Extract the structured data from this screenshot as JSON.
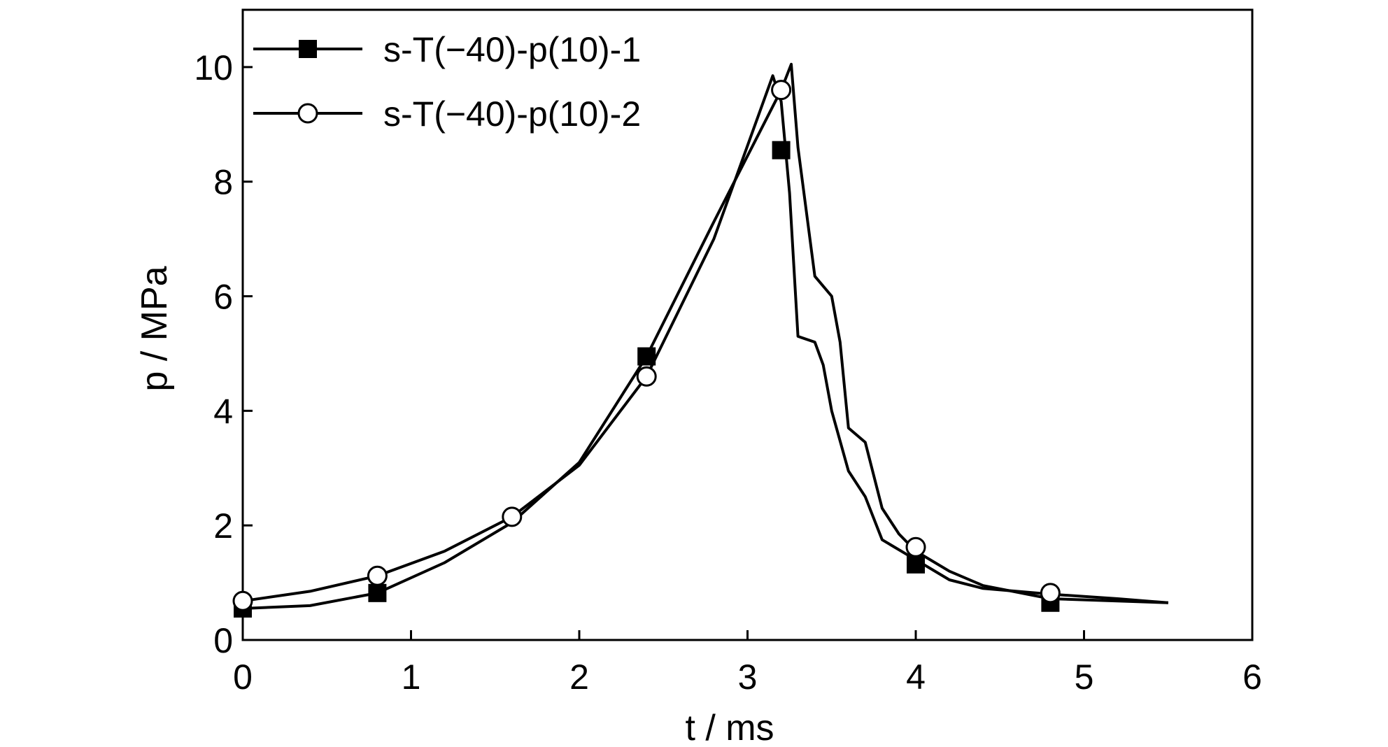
{
  "chart_data": {
    "type": "line",
    "title": "",
    "xlabel": "t / ms",
    "ylabel": "p / MPa",
    "xlim": [
      0,
      6
    ],
    "ylim": [
      0,
      11
    ],
    "xticks": [
      "0",
      "1",
      "2",
      "3",
      "4",
      "5",
      "6"
    ],
    "yticks": [
      "0",
      "2",
      "4",
      "6",
      "8",
      "10"
    ],
    "grid": false,
    "legend_position": "top-left",
    "series": [
      {
        "name": "s-T(−40)-p(10)-1",
        "marker": "filled-square",
        "color": "#000000",
        "x": [
          0,
          0.4,
          0.8,
          1.2,
          1.6,
          2.0,
          2.4,
          2.8,
          3.2,
          3.26,
          3.3,
          3.4,
          3.5,
          3.55,
          3.6,
          3.7,
          3.8,
          3.9,
          4.0,
          4.2,
          4.4,
          4.8,
          5.2,
          5.5
        ],
        "y": [
          0.55,
          0.6,
          0.82,
          1.35,
          2.05,
          3.1,
          4.95,
          7.3,
          9.6,
          10.05,
          8.6,
          6.35,
          6.0,
          5.2,
          3.7,
          3.45,
          2.3,
          1.85,
          1.55,
          1.2,
          0.95,
          0.72,
          0.68,
          0.65
        ],
        "markers_x": [
          0,
          0.8,
          2.4,
          3.2,
          4.0,
          4.8
        ],
        "markers_y": [
          0.55,
          0.82,
          4.95,
          8.55,
          1.32,
          0.65
        ]
      },
      {
        "name": "s-T(−40)-p(10)-2",
        "marker": "open-circle",
        "color": "#000000",
        "x": [
          0,
          0.4,
          0.8,
          1.2,
          1.6,
          2.0,
          2.4,
          2.8,
          3.15,
          3.2,
          3.25,
          3.3,
          3.4,
          3.45,
          3.5,
          3.6,
          3.7,
          3.8,
          4.0,
          4.2,
          4.4,
          4.8,
          5.2,
          5.5
        ],
        "y": [
          0.68,
          0.85,
          1.12,
          1.55,
          2.15,
          3.05,
          4.6,
          7.0,
          9.85,
          9.4,
          7.8,
          5.3,
          5.2,
          4.8,
          4.0,
          2.95,
          2.5,
          1.75,
          1.4,
          1.05,
          0.9,
          0.8,
          0.72,
          0.65
        ],
        "markers_x": [
          0,
          0.8,
          1.6,
          2.4,
          3.2,
          4.0,
          4.8
        ],
        "markers_y": [
          0.68,
          1.12,
          2.15,
          4.6,
          9.6,
          1.62,
          0.82
        ]
      }
    ]
  }
}
